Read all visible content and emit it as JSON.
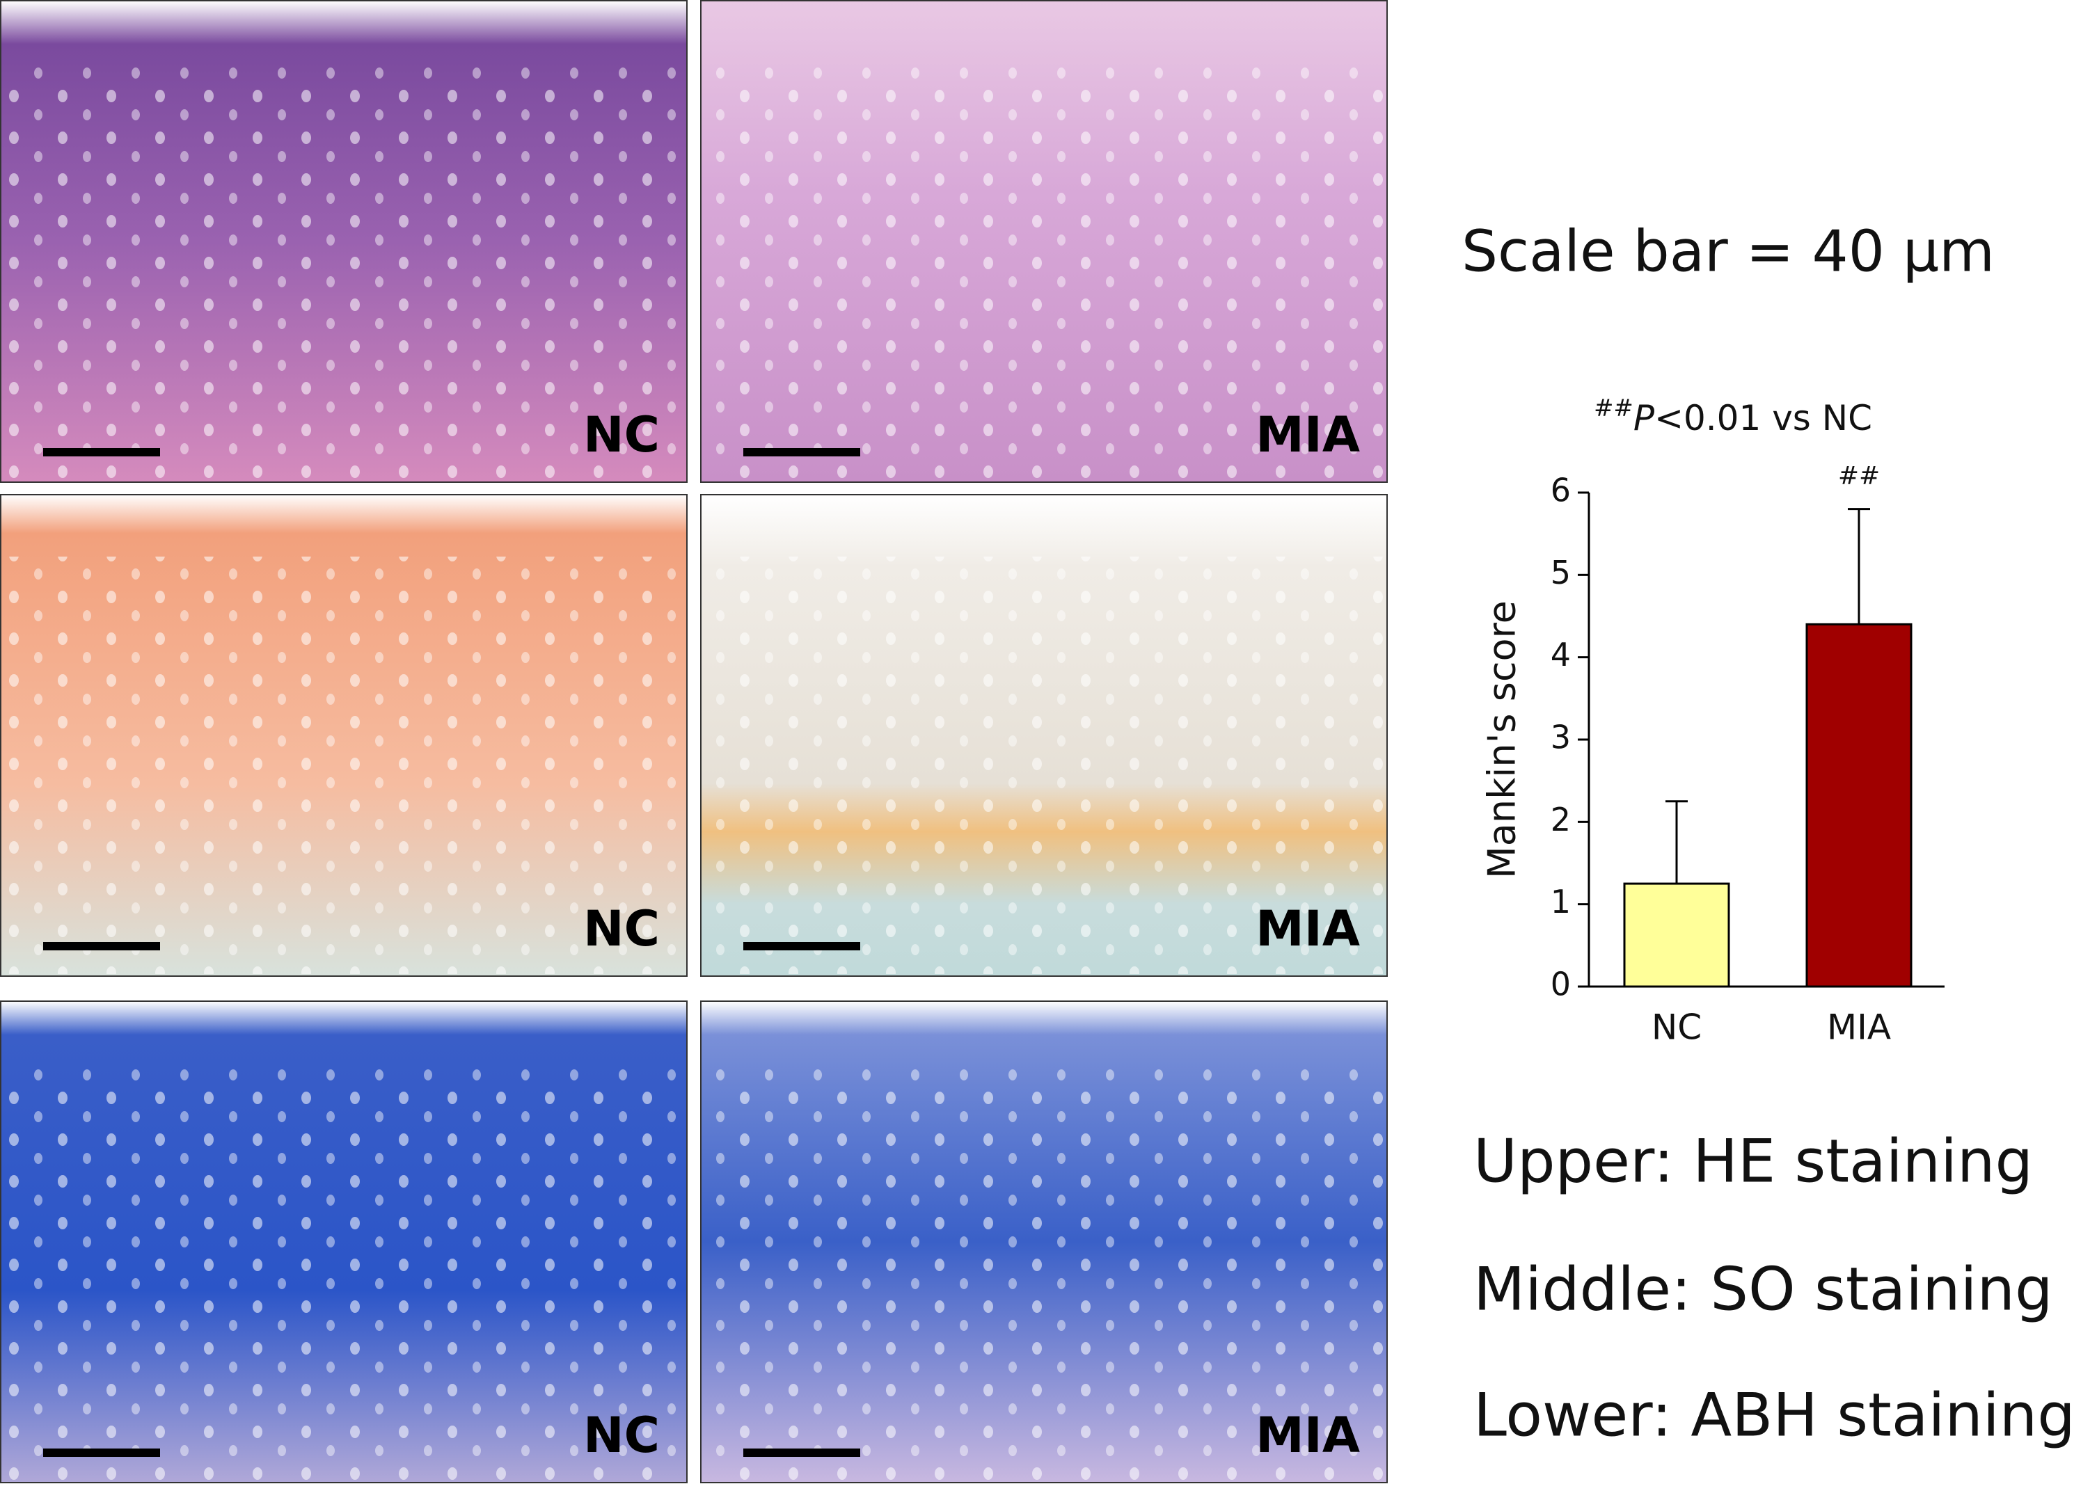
{
  "panels": [
    {
      "label": "NC"
    },
    {
      "label": "MIA"
    },
    {
      "label": "NC"
    },
    {
      "label": "MIA"
    },
    {
      "label": "NC"
    },
    {
      "label": "MIA"
    }
  ],
  "scale_note": "Scale bar = 40 μm",
  "legend": [
    "Upper: HE staining",
    "Middle: SO staining",
    "Lower: ABH staining"
  ],
  "chart_data": {
    "type": "bar",
    "title_mark": "##",
    "title_p": "P",
    "title_rest": "<0.01 vs NC",
    "ylabel": "Mankin's score",
    "categories": [
      "NC",
      "MIA"
    ],
    "values": [
      1.25,
      4.4
    ],
    "errors": [
      1.0,
      1.4
    ],
    "significance": [
      null,
      "##"
    ],
    "colors": [
      "#ffff99",
      "#a00000"
    ],
    "ylim": [
      0,
      6
    ],
    "yticks": [
      0,
      1,
      2,
      3,
      4,
      5,
      6
    ]
  }
}
